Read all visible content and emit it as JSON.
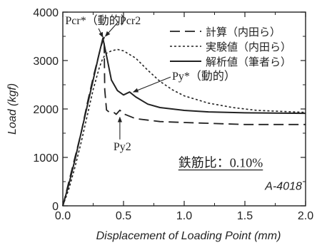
{
  "chart_data": {
    "type": "line",
    "xlabel": "Displacement of Loading Point (mm)",
    "ylabel": "Load (kgf)",
    "xlim": [
      0,
      2.0
    ],
    "ylim": [
      0,
      4000
    ],
    "x_ticks": [
      "0.0",
      "0.5",
      "1.0",
      "1.5",
      "2.0"
    ],
    "y_ticks": [
      "0",
      "1000",
      "2000",
      "3000",
      "4000"
    ],
    "grid": false,
    "legend_position": "top-right",
    "series": [
      {
        "name": "計算（内田ら）",
        "style": "long-dash",
        "points": [
          [
            0,
            0
          ],
          [
            0.05,
            500
          ],
          [
            0.1,
            1000
          ],
          [
            0.15,
            1500
          ],
          [
            0.2,
            2100
          ],
          [
            0.25,
            2650
          ],
          [
            0.3,
            3150
          ],
          [
            0.325,
            3380
          ],
          [
            0.34,
            3480
          ],
          [
            0.345,
            2400
          ],
          [
            0.36,
            1980
          ],
          [
            0.38,
            1940
          ],
          [
            0.42,
            1930
          ],
          [
            0.44,
            1890
          ],
          [
            0.47,
            1975
          ],
          [
            0.5,
            1900
          ],
          [
            0.6,
            1800
          ],
          [
            0.8,
            1740
          ],
          [
            1.0,
            1720
          ],
          [
            1.5,
            1680
          ],
          [
            2.0,
            1680
          ]
        ]
      },
      {
        "name": "実験値（内田ら）",
        "style": "dotted",
        "points": [
          [
            0,
            0
          ],
          [
            0.05,
            350
          ],
          [
            0.1,
            800
          ],
          [
            0.15,
            1300
          ],
          [
            0.2,
            1850
          ],
          [
            0.25,
            2400
          ],
          [
            0.3,
            2850
          ],
          [
            0.33,
            3050
          ],
          [
            0.36,
            3150
          ],
          [
            0.4,
            3200
          ],
          [
            0.45,
            3230
          ],
          [
            0.5,
            3200
          ],
          [
            0.6,
            3050
          ],
          [
            0.7,
            2800
          ],
          [
            0.8,
            2570
          ],
          [
            0.9,
            2400
          ],
          [
            1.0,
            2270
          ],
          [
            1.2,
            2120
          ],
          [
            1.4,
            2030
          ],
          [
            1.6,
            1970
          ],
          [
            1.8,
            1950
          ],
          [
            2.0,
            1930
          ]
        ]
      },
      {
        "name": "解析値（筆者ら）",
        "style": "solid",
        "points": [
          [
            0,
            0
          ],
          [
            0.05,
            450
          ],
          [
            0.1,
            950
          ],
          [
            0.15,
            1500
          ],
          [
            0.2,
            2050
          ],
          [
            0.25,
            2600
          ],
          [
            0.3,
            3150
          ],
          [
            0.33,
            3460
          ],
          [
            0.36,
            3100
          ],
          [
            0.4,
            2600
          ],
          [
            0.45,
            2380
          ],
          [
            0.5,
            2290
          ],
          [
            0.55,
            2350
          ],
          [
            0.6,
            2250
          ],
          [
            0.7,
            2100
          ],
          [
            0.8,
            2030
          ],
          [
            1.0,
            1970
          ],
          [
            1.2,
            1940
          ],
          [
            1.5,
            1920
          ],
          [
            2.0,
            1910
          ]
        ]
      }
    ],
    "annotations": [
      {
        "text": "Pcr*（動的）",
        "font": "serif",
        "x": 0.02,
        "y": 3750,
        "anchor": "start",
        "arrow_to": [
          0.33,
          3480
        ]
      },
      {
        "text": "Pcr2",
        "font": "serif",
        "x": 0.47,
        "y": 3750,
        "anchor": "start",
        "arrow_to": [
          0.35,
          3500
        ]
      },
      {
        "text": "Py*（動的）",
        "font": "serif",
        "x": 0.9,
        "y": 2600,
        "anchor": "start",
        "arrow_to": [
          0.58,
          2350
        ]
      },
      {
        "text": "Py2",
        "font": "serif",
        "x": 0.49,
        "y": 1150,
        "anchor": "middle",
        "arrow_to": [
          0.47,
          1830
        ]
      },
      {
        "text": "鉄筋比：0.10%",
        "font": "serif",
        "x": 1.3,
        "y": 800,
        "anchor": "middle",
        "underline": true
      },
      {
        "text": "A-4018",
        "font": "sans-italic",
        "x": 1.97,
        "y": 330,
        "anchor": "end"
      }
    ]
  }
}
